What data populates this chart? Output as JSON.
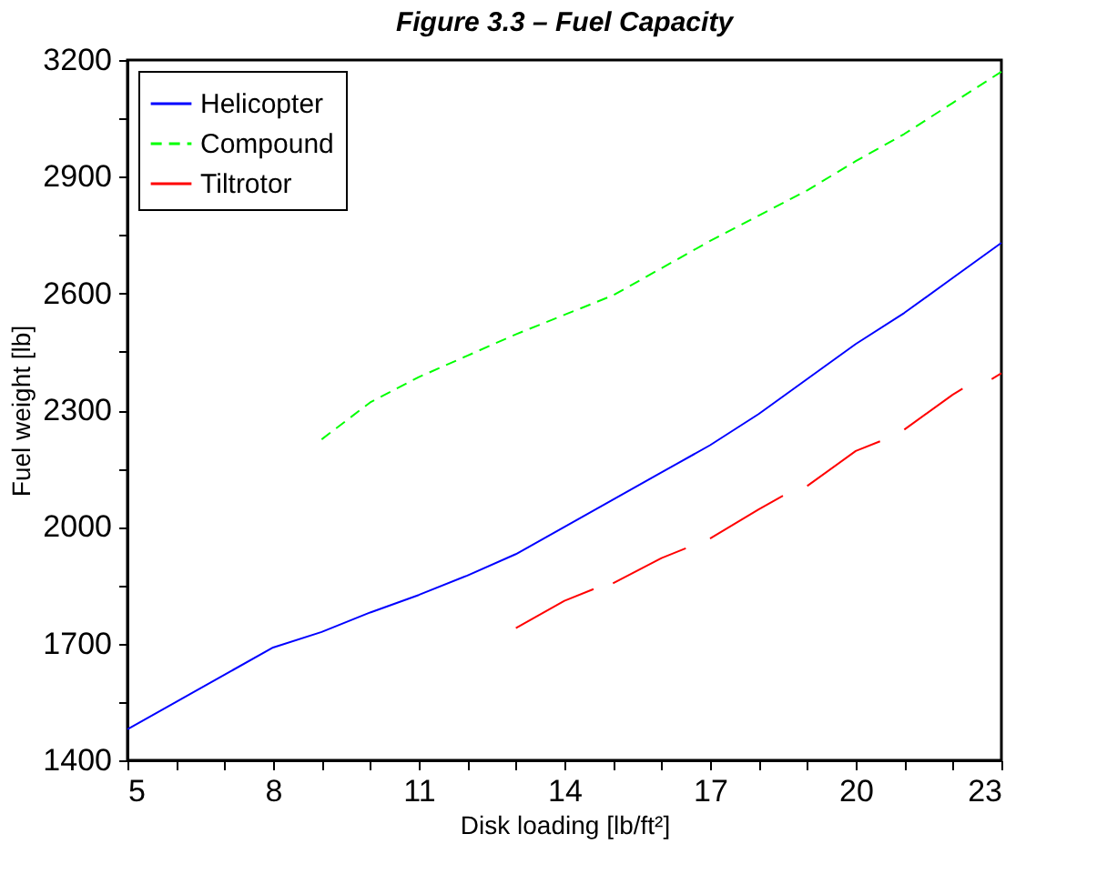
{
  "chart_data": {
    "type": "line",
    "title": "Figure 3.3 – Fuel Capacity",
    "xlabel": "Disk loading [lb/ft²]",
    "ylabel": "Fuel weight [lb]",
    "xlim": [
      5,
      23
    ],
    "ylim": [
      1400,
      3200
    ],
    "xticks": [
      5,
      {
        "value": 6,
        "label": null
      },
      {
        "value": 7,
        "label": null
      },
      8,
      {
        "value": 9,
        "label": null
      },
      {
        "value": 10,
        "label": null
      },
      11,
      {
        "value": 12,
        "label": null
      },
      {
        "value": 13,
        "label": null
      },
      14,
      {
        "value": 15,
        "label": null
      },
      {
        "value": 16,
        "label": null
      },
      17,
      {
        "value": 18,
        "label": null
      },
      {
        "value": 19,
        "label": null
      },
      20,
      {
        "value": 21,
        "label": null
      },
      {
        "value": 22,
        "label": null
      },
      23
    ],
    "yticks": [
      1400,
      {
        "value": 1550,
        "label": null
      },
      1700,
      {
        "value": 1850,
        "label": null
      },
      2000,
      {
        "value": 2150,
        "label": null
      },
      2300,
      {
        "value": 2450,
        "label": null
      },
      2600,
      {
        "value": 2750,
        "label": null
      },
      2900,
      {
        "value": 3050,
        "label": null
      },
      3200
    ],
    "grid": false,
    "legend": "top left",
    "marker": "none",
    "series": [
      {
        "name": "Helicopter",
        "color": "#0000ff",
        "line_style": "solid",
        "x": [
          5,
          6,
          7,
          8,
          9,
          10,
          11,
          12,
          13,
          14,
          15,
          16,
          17,
          18,
          19,
          20,
          21,
          22,
          23
        ],
        "values": [
          1480,
          1550,
          1620,
          1690,
          1730,
          1780,
          1825,
          1875,
          1930,
          2000,
          2070,
          2140,
          2210,
          2290,
          2380,
          2470,
          2550,
          2640,
          2730
        ]
      },
      {
        "name": "Compound",
        "color": "#00ff00",
        "line_style": "dashed",
        "x": [
          9,
          10,
          11,
          12,
          13,
          14,
          15,
          16,
          17,
          18,
          19,
          20,
          21,
          22,
          23
        ],
        "values": [
          2225,
          2320,
          2385,
          2440,
          2495,
          2545,
          2595,
          2665,
          2735,
          2800,
          2865,
          2940,
          3010,
          3090,
          3170
        ]
      },
      {
        "name": "Tiltrotor",
        "color": "#ff0000",
        "line_style": "solid",
        "x": [
          13,
          14,
          14.6,
          14.8,
          15,
          16,
          16.5,
          16.7,
          17,
          18,
          18.5,
          18.7,
          19,
          20,
          20.5,
          20.7,
          21,
          22,
          22.2,
          22.5,
          22.8,
          23
        ],
        "values": [
          1740,
          1810,
          1840,
          null,
          1855,
          1920,
          1945,
          null,
          1970,
          2045,
          2080,
          null,
          2105,
          2195,
          2220,
          null,
          2250,
          2340,
          2355,
          null,
          2380,
          2395
        ]
      }
    ]
  }
}
